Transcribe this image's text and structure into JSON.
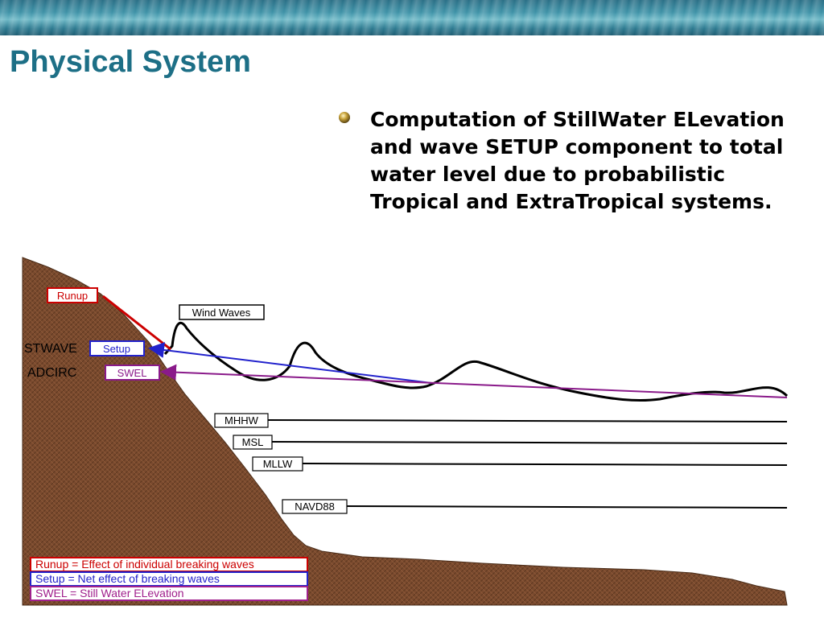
{
  "slide": {
    "title": "Physical System",
    "bullet": "Computation of StillWater ELevation and wave SETUP component to total water level due to probabilistic Tropical and ExtraTropical systems."
  },
  "diagram": {
    "labels": {
      "runup": "Runup",
      "wind_waves": "Wind Waves",
      "setup": "Setup",
      "swel": "SWEL",
      "mhhw": "MHHW",
      "msl": "MSL",
      "mllw": "MLLW",
      "navd88": "NAVD88"
    },
    "models": {
      "stwave": "STWAVE",
      "adcirc": "ADCIRC"
    },
    "legend": [
      {
        "text": "Runup = Effect of individual breaking waves",
        "color": "#e0202a"
      },
      {
        "text": "Setup = Net effect of breaking waves",
        "color": "#2a2ad8"
      },
      {
        "text": "SWEL = Still Water ELevation",
        "color": "#a0208c"
      }
    ],
    "colors": {
      "terrain": "#7a4a2e",
      "runup": "#cc0000",
      "setup": "#2222cc",
      "swel": "#8a1a8a",
      "datum": "#000000"
    }
  }
}
